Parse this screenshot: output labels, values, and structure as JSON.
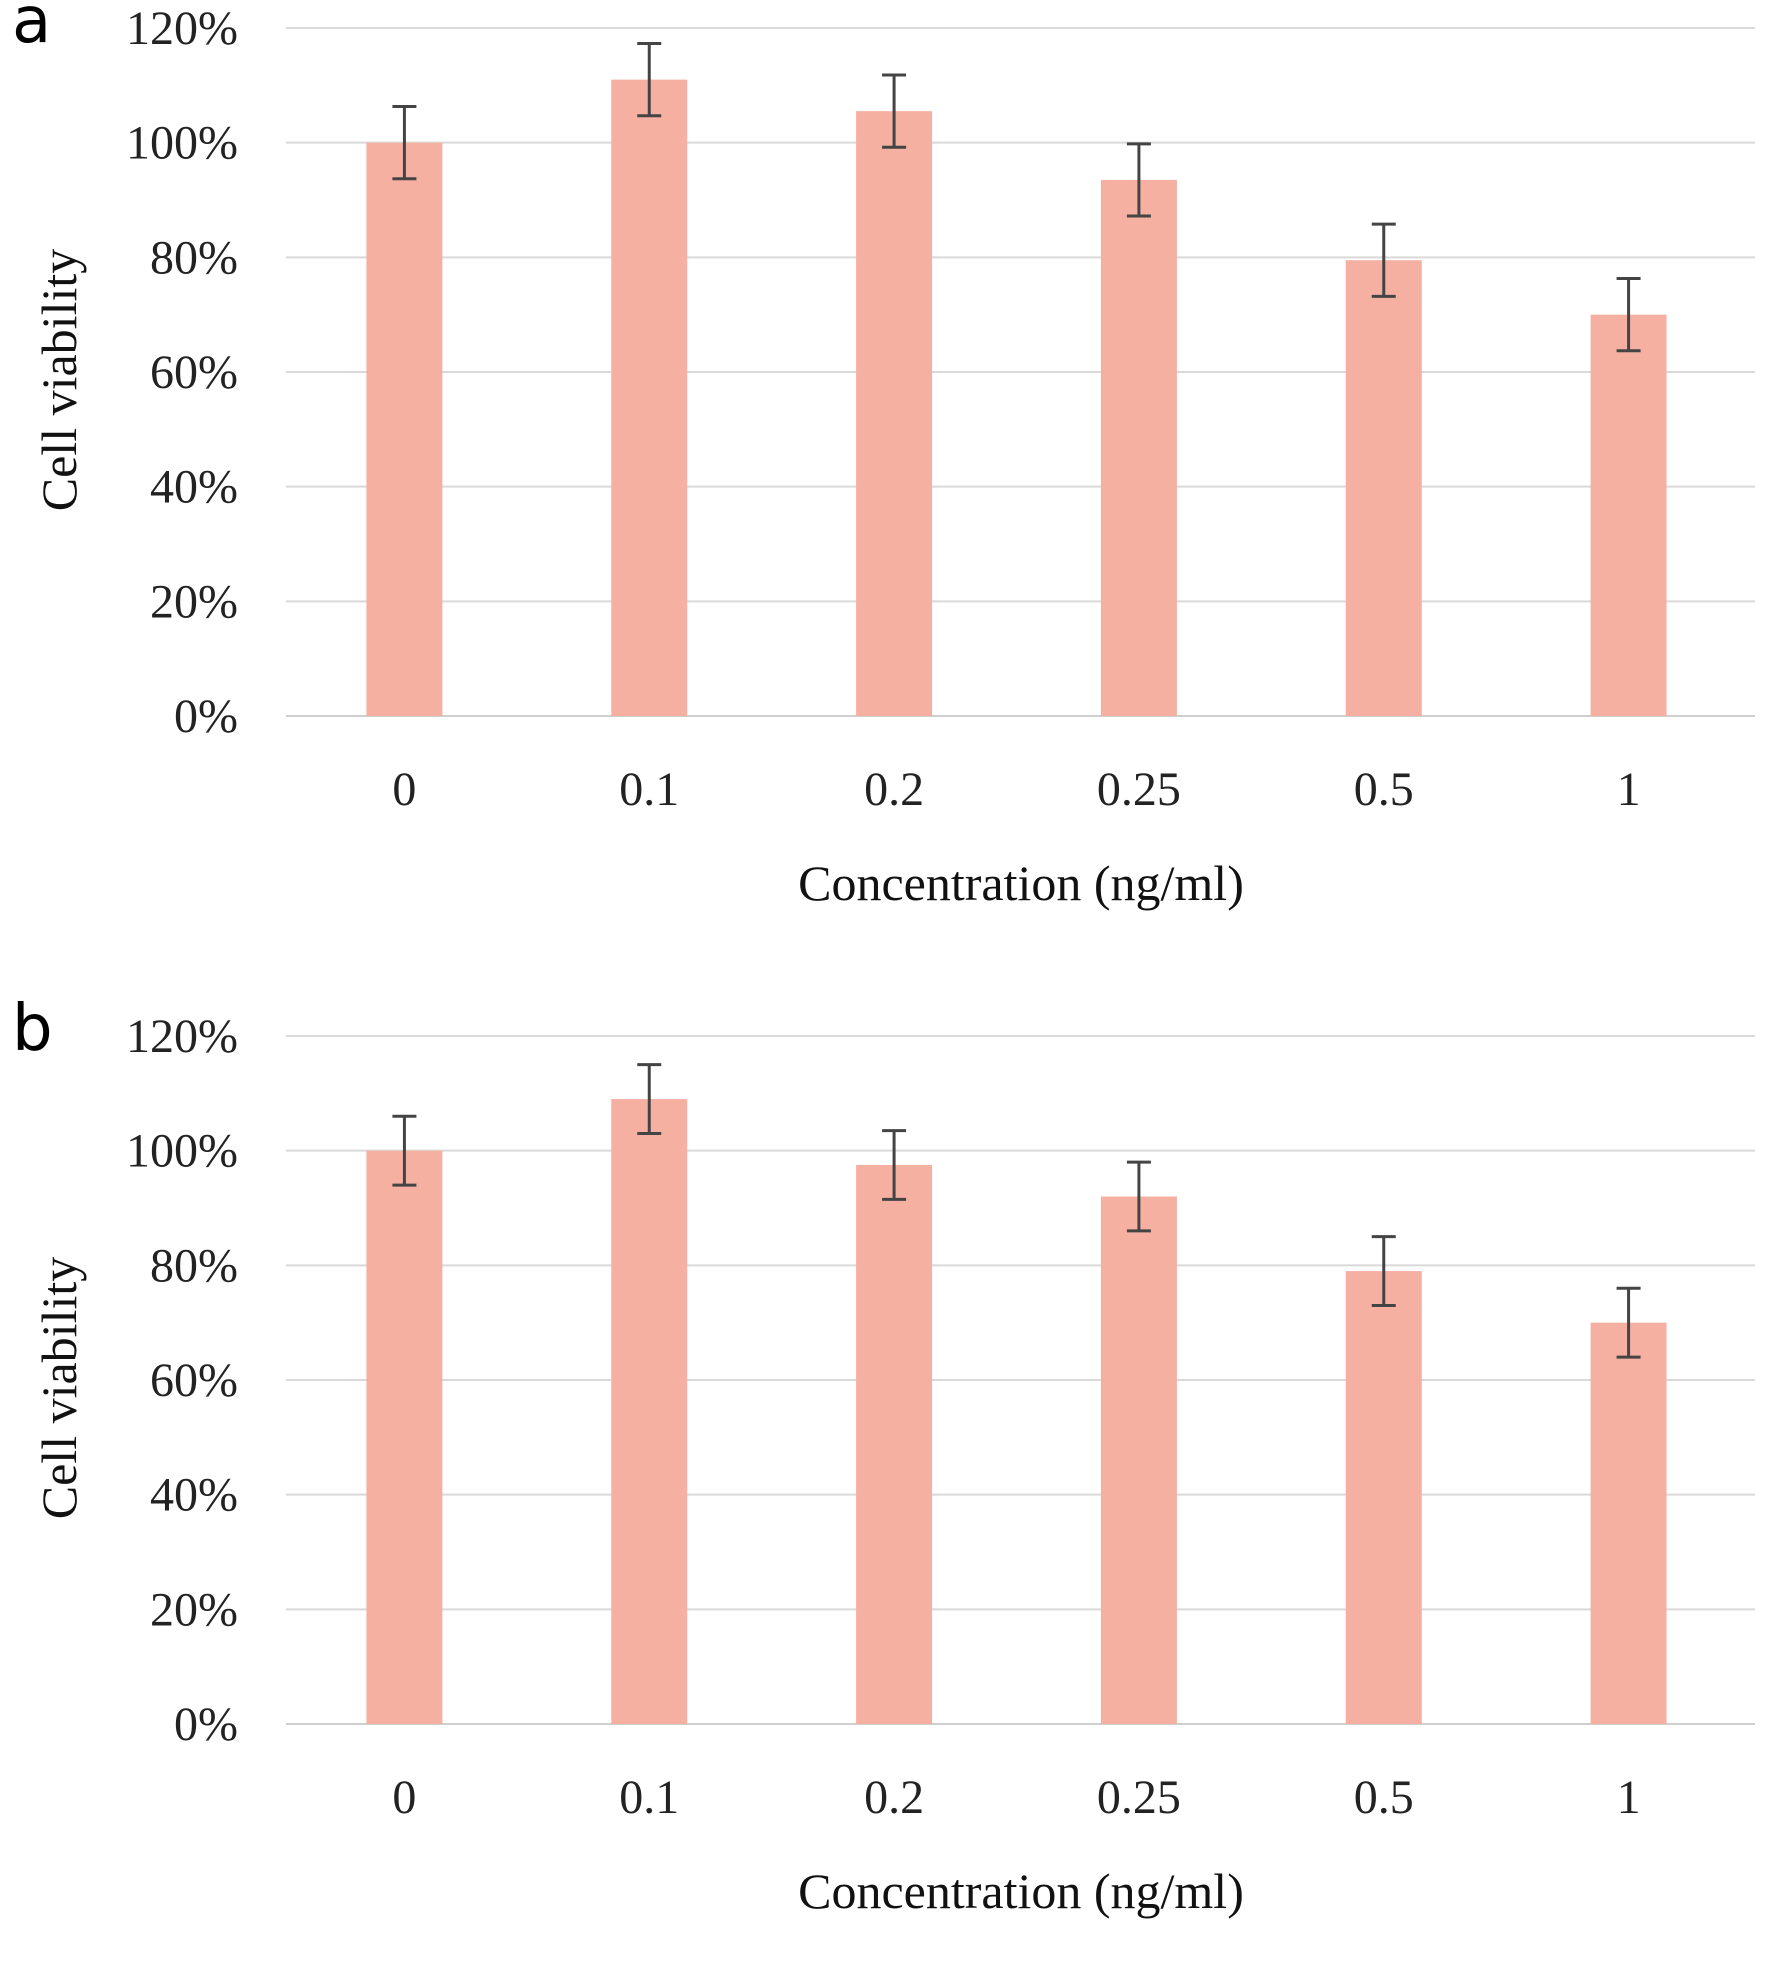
{
  "chart_data": [
    {
      "panel": "a",
      "type": "bar",
      "categories": [
        "0",
        "0.1",
        "0.2",
        "0.25",
        "0.5",
        "1"
      ],
      "values": [
        1.0,
        1.11,
        1.055,
        0.935,
        0.795,
        0.7
      ],
      "errors": [
        0.063,
        0.063,
        0.063,
        0.063,
        0.063,
        0.063
      ],
      "xlabel": "Concentration (ng/ml)",
      "ylabel": "Cell viability",
      "ylim": [
        0,
        1.2
      ],
      "yticks": [
        "0%",
        "20%",
        "40%",
        "60%",
        "80%",
        "100%",
        "120%"
      ],
      "bar_color": "#f5b0a2",
      "grid": true
    },
    {
      "panel": "b",
      "type": "bar",
      "categories": [
        "0",
        "0.1",
        "0.2",
        "0.25",
        "0.5",
        "1"
      ],
      "values": [
        1.0,
        1.09,
        0.975,
        0.92,
        0.79,
        0.7
      ],
      "errors": [
        0.06,
        0.06,
        0.06,
        0.06,
        0.06,
        0.06
      ],
      "xlabel": "Concentration (ng/ml)",
      "ylabel": "Cell viability",
      "ylim": [
        0,
        1.2
      ],
      "yticks": [
        "0%",
        "20%",
        "40%",
        "60%",
        "80%",
        "100%",
        "120%"
      ],
      "bar_color": "#f5b0a2",
      "grid": true
    }
  ],
  "panels": [
    {
      "letter": "a"
    },
    {
      "letter": "b"
    }
  ]
}
